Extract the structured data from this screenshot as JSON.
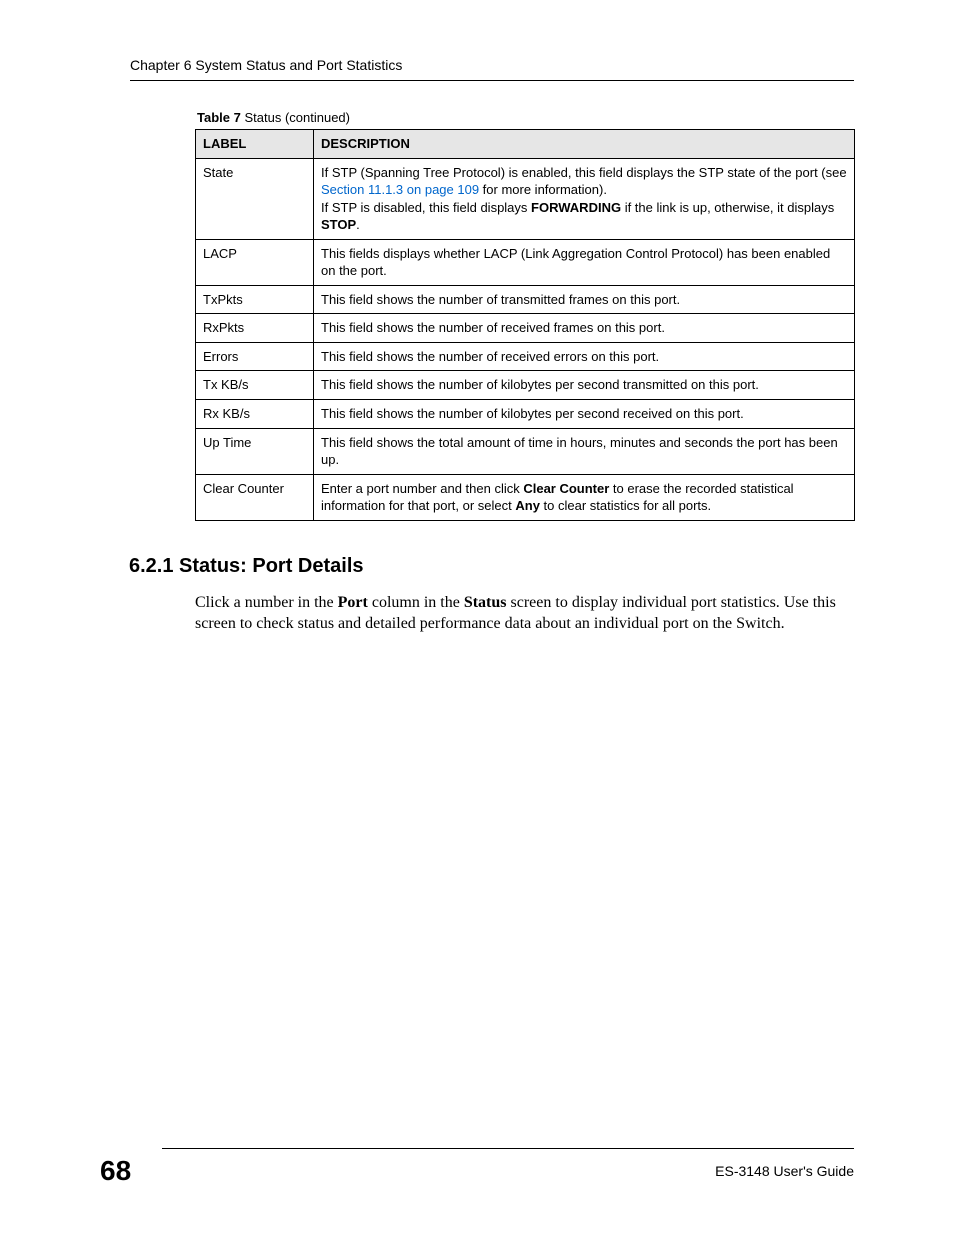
{
  "header": {
    "chapter_title": "Chapter 6 System Status and Port Statistics"
  },
  "table": {
    "caption_label": "Table 7",
    "caption_title": "Status",
    "caption_suffix": "(continued)",
    "header_label": "LABEL",
    "header_description": "DESCRIPTION",
    "rows": [
      {
        "label": "State",
        "desc_line1_pre": "If STP (Spanning Tree Protocol) is enabled, this field displays the STP state of the port (see ",
        "desc_link": "Section 11.1.3 on page 109",
        "desc_line1_post": " for more information).",
        "desc_line2_pre": "If STP is disabled, this field displays ",
        "desc_bold1": "FORWARDING",
        "desc_line2_mid": " if the link is up, otherwise, it displays ",
        "desc_bold2": "STOP",
        "desc_line2_post": "."
      },
      {
        "label": "LACP",
        "desc": "This fields displays whether LACP (Link Aggregation Control Protocol) has been enabled on the port."
      },
      {
        "label": "TxPkts",
        "desc": "This field shows the number of transmitted frames on this port."
      },
      {
        "label": "RxPkts",
        "desc": "This field shows the number of received frames on this port."
      },
      {
        "label": "Errors",
        "desc": "This field shows the number of received errors on this port."
      },
      {
        "label": "Tx KB/s",
        "desc": "This field shows the number of kilobytes per second transmitted on this port."
      },
      {
        "label": "Rx KB/s",
        "desc": "This field shows the number of kilobytes per second received on this port."
      },
      {
        "label": "Up Time",
        "desc": "This field shows the total amount of time in hours, minutes and seconds the port has been up."
      },
      {
        "label": "Clear Counter",
        "desc_pre": "Enter a port number and then click ",
        "desc_bold1": "Clear Counter",
        "desc_mid": " to erase the recorded statistical information for that port, or select ",
        "desc_bold2": "Any",
        "desc_post": " to clear statistics for all ports."
      }
    ]
  },
  "section": {
    "heading": "6.2.1  Status: Port Details",
    "para_pre": "Click a number in the ",
    "para_bold1": "Port",
    "para_mid1": " column in the ",
    "para_bold2": "Status",
    "para_post": " screen to display individual port statistics. Use this screen to check status and detailed performance data about an individual port on the Switch."
  },
  "footer": {
    "page_number": "68",
    "guide": "ES-3148 User's Guide"
  }
}
